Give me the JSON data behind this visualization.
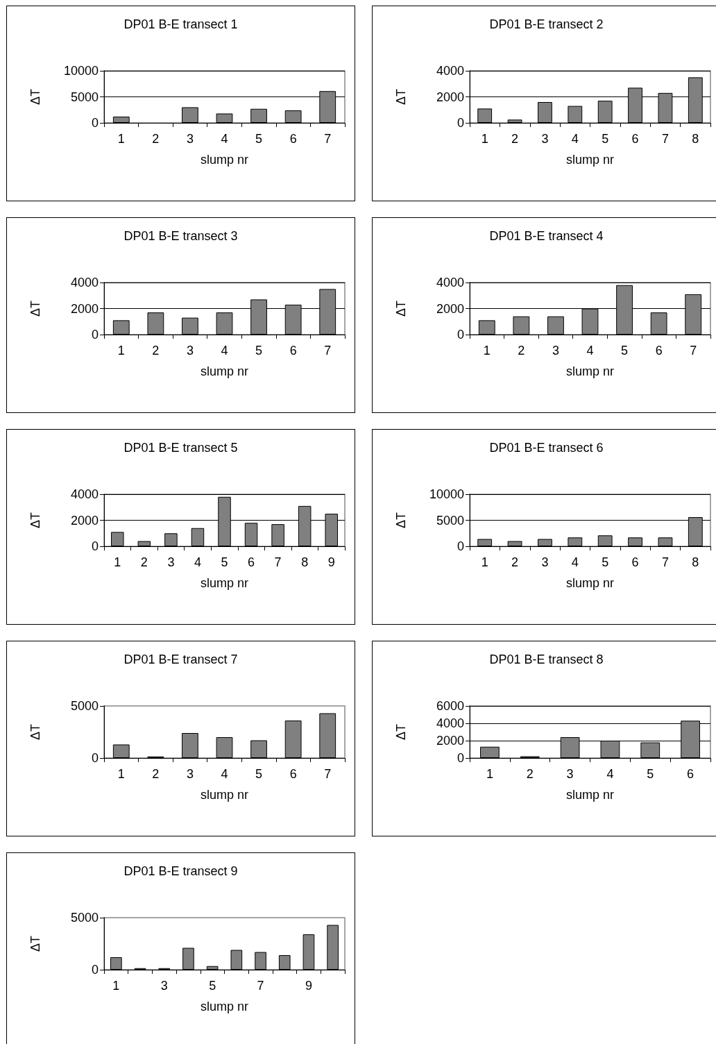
{
  "chart_data": [
    {
      "type": "bar",
      "title": "DP01 B-E transect 1",
      "xlabel": "slump nr",
      "ylabel": "ΔT",
      "categories": [
        "1",
        "2",
        "3",
        "4",
        "5",
        "6",
        "7"
      ],
      "values": [
        1200,
        null,
        3000,
        1800,
        2700,
        2400,
        6100
      ],
      "color": "#808080",
      "ylim": [
        0,
        10000
      ],
      "yticks": [
        0,
        5000,
        10000
      ],
      "grid": "y"
    },
    {
      "type": "bar",
      "title": "DP01 B-E transect 2",
      "xlabel": "slump nr",
      "ylabel": "ΔT",
      "categories": [
        "1",
        "2",
        "3",
        "4",
        "5",
        "6",
        "7",
        "8"
      ],
      "values": [
        1100,
        250,
        1600,
        1300,
        1700,
        2700,
        2300,
        3500
      ],
      "color": "#808080",
      "ylim": [
        0,
        4000
      ],
      "yticks": [
        0,
        2000,
        4000
      ],
      "grid": "y"
    },
    {
      "type": "bar",
      "title": "DP01 B-E transect 3",
      "xlabel": "slump nr",
      "ylabel": "ΔT",
      "categories": [
        "1",
        "2",
        "3",
        "4",
        "5",
        "6",
        "7"
      ],
      "values": [
        1100,
        1700,
        1300,
        1700,
        2700,
        2300,
        3500
      ],
      "color": "#808080",
      "ylim": [
        0,
        4000
      ],
      "yticks": [
        0,
        2000,
        4000
      ],
      "grid": "y"
    },
    {
      "type": "bar",
      "title": "DP01 B-E transect 4",
      "xlabel": "slump nr",
      "ylabel": "ΔT",
      "categories": [
        "1",
        "2",
        "3",
        "4",
        "5",
        "6",
        "7"
      ],
      "values": [
        1100,
        1400,
        1400,
        2000,
        3800,
        1700,
        3100
      ],
      "color": "#808080",
      "ylim": [
        0,
        4000
      ],
      "yticks": [
        0,
        2000,
        4000
      ],
      "grid": "y"
    },
    {
      "type": "bar",
      "title": "DP01 B-E transect 5",
      "xlabel": "slump nr",
      "ylabel": "ΔT",
      "categories": [
        "1",
        "2",
        "3",
        "4",
        "5",
        "6",
        "7",
        "8",
        "9"
      ],
      "values": [
        1100,
        400,
        1000,
        1400,
        3800,
        1800,
        1700,
        3100,
        2500
      ],
      "color": "#808080",
      "ylim": [
        0,
        4000
      ],
      "yticks": [
        0,
        2000,
        4000
      ],
      "grid": "y"
    },
    {
      "type": "bar",
      "title": "DP01 B-E transect 6",
      "xlabel": "slump nr",
      "ylabel": "ΔT",
      "categories": [
        "1",
        "2",
        "3",
        "4",
        "5",
        "6",
        "7",
        "8"
      ],
      "values": [
        1400,
        1000,
        1400,
        1700,
        2100,
        1700,
        1700,
        5600
      ],
      "color": "#808080",
      "ylim": [
        0,
        10000
      ],
      "yticks": [
        0,
        5000,
        10000
      ],
      "grid": "y"
    },
    {
      "type": "bar",
      "title": "DP01 B-E transect 7",
      "xlabel": "slump nr",
      "ylabel": "ΔT",
      "categories": [
        "1",
        "2",
        "3",
        "4",
        "5",
        "6",
        "7"
      ],
      "values": [
        1300,
        150,
        2400,
        2000,
        1700,
        3600,
        4300
      ],
      "color": "#808080",
      "ylim": [
        0,
        5000
      ],
      "yticks": [
        0,
        5000
      ],
      "grid": false
    },
    {
      "type": "bar",
      "title": "DP01 B-E transect 8",
      "xlabel": "slump nr",
      "ylabel": "ΔT",
      "categories": [
        "1",
        "2",
        "3",
        "4",
        "5",
        "6"
      ],
      "values": [
        1300,
        200,
        2400,
        2000,
        1800,
        4300
      ],
      "color": "#808080",
      "ylim": [
        0,
        6000
      ],
      "yticks": [
        0,
        2000,
        4000,
        6000
      ],
      "grid": "y"
    },
    {
      "type": "bar",
      "title": "DP01 B-E transect 9",
      "xlabel": "slump nr",
      "ylabel": "ΔT",
      "categories": [
        "1",
        null,
        "3",
        null,
        "5",
        null,
        "7",
        null,
        "9",
        null
      ],
      "values": [
        1200,
        150,
        150,
        2100,
        350,
        1900,
        1700,
        1400,
        3400,
        4300
      ],
      "color": "#808080",
      "ylim": [
        0,
        5000
      ],
      "yticks": [
        0,
        5000
      ],
      "grid": false
    }
  ]
}
